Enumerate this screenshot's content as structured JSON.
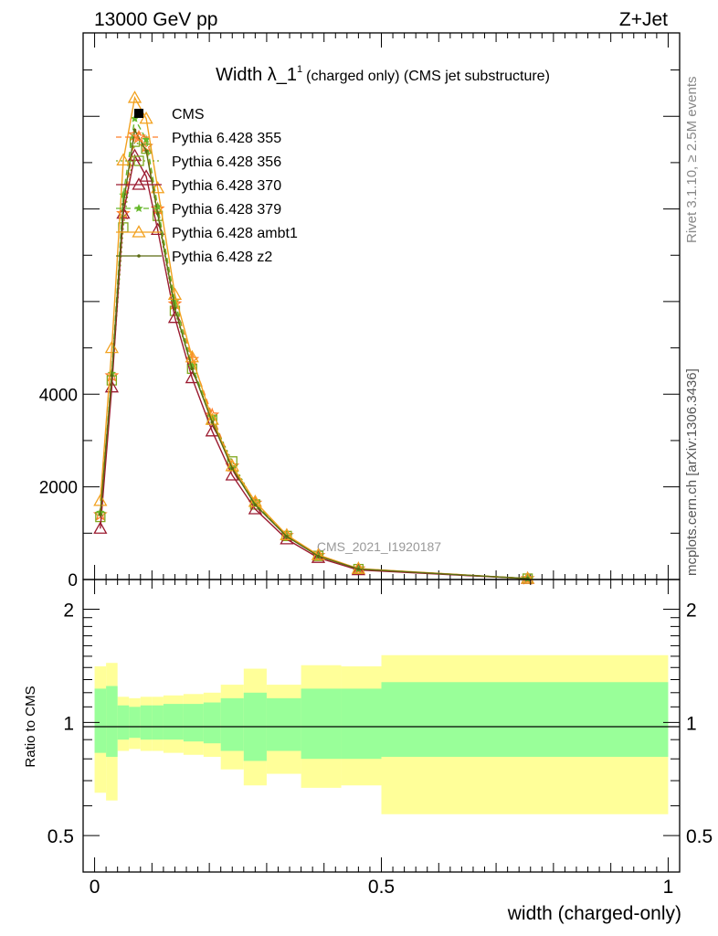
{
  "header": {
    "left": "13000 GeV pp",
    "right": "Z+Jet"
  },
  "side_labels": {
    "rivet": "Rivet 3.1.10, ≥ 2.5M events",
    "mcplots": "mcplots.cern.ch [arXiv:1306.3436]"
  },
  "chart_data": [
    {
      "type": "line",
      "title_main": "Width λ_1",
      "title_sup": "1",
      "title_rest": "(charged only) (CMS jet substructure)",
      "xlabel": "width (charged-only)",
      "watermark": "CMS_2021_I1920187",
      "xlim": [
        -0.02,
        1.02
      ],
      "ylim": [
        0,
        11800
      ],
      "y_ticks": [
        0,
        2000,
        4000
      ],
      "y_tick_labels": [
        "0",
        "2000",
        "4000"
      ],
      "legend_position": "top-left",
      "legend": [
        {
          "name": "CMS",
          "color": "#000000",
          "marker": "square",
          "dash": "none"
        },
        {
          "name": "Pythia 6.428 355",
          "color": "#ff7f2a",
          "marker": "star-open",
          "dash": "dashed"
        },
        {
          "name": "Pythia 6.428 356",
          "color": "#7fa81e",
          "marker": "square-open",
          "dash": "dotted"
        },
        {
          "name": "Pythia 6.428 370",
          "color": "#9b1b30",
          "marker": "triangle-open",
          "dash": "solid"
        },
        {
          "name": "Pythia 6.428 379",
          "color": "#66b82a",
          "marker": "star",
          "dash": "dashed"
        },
        {
          "name": "Pythia 6.428 ambt1",
          "color": "#f2a11f",
          "marker": "triangle-open",
          "dash": "solid"
        },
        {
          "name": "Pythia 6.428 z2",
          "color": "#5a6b12",
          "marker": "dot",
          "dash": "solid"
        }
      ],
      "x": [
        0.01,
        0.03,
        0.05,
        0.07,
        0.09,
        0.11,
        0.14,
        0.17,
        0.205,
        0.24,
        0.28,
        0.335,
        0.39,
        0.46,
        0.755
      ],
      "series": [
        {
          "name": "Pythia 6.428 355",
          "values": [
            1400,
            4400,
            7900,
            9600,
            9350,
            8000,
            5950,
            4750,
            3550,
            2450,
            1650,
            950,
            520,
            230,
            20
          ]
        },
        {
          "name": "Pythia 6.428 356",
          "values": [
            1350,
            4300,
            7600,
            9450,
            9300,
            7850,
            5800,
            4550,
            3450,
            2550,
            1620,
            940,
            510,
            225,
            20
          ]
        },
        {
          "name": "Pythia 6.428 370",
          "values": [
            1100,
            4150,
            7900,
            9150,
            8700,
            7550,
            5650,
            4350,
            3200,
            2250,
            1520,
            870,
            470,
            205,
            18
          ]
        },
        {
          "name": "Pythia 6.428 379",
          "values": [
            1450,
            4450,
            8300,
            9950,
            9500,
            8050,
            6000,
            4600,
            3500,
            2400,
            1640,
            940,
            515,
            228,
            20
          ]
        },
        {
          "name": "Pythia 6.428 ambt1",
          "values": [
            1700,
            5000,
            9050,
            10400,
            9950,
            8450,
            6150,
            4800,
            3450,
            2450,
            1680,
            960,
            530,
            235,
            20
          ]
        },
        {
          "name": "Pythia 6.428 z2",
          "values": [
            1400,
            4400,
            8100,
            9700,
            9250,
            7900,
            5850,
            4550,
            3400,
            2400,
            1610,
            930,
            505,
            225,
            20
          ]
        }
      ]
    },
    {
      "type": "area",
      "ylabel": "Ratio to CMS",
      "xlim": [
        -0.02,
        1.02
      ],
      "ylim": [
        0.4,
        2.4
      ],
      "log_y": true,
      "y_tick_labels": [
        "0.5",
        "1",
        "2"
      ],
      "y_ticks": [
        0.5,
        1,
        2
      ],
      "x_ticks": [
        0,
        0.5,
        1
      ],
      "x_tick_labels": [
        "0",
        "0.5",
        "1"
      ],
      "reference_line": 1,
      "bins": [
        {
          "lo": 0.0,
          "hi": 0.02,
          "inner": [
            0.83,
            1.23
          ],
          "outer": [
            0.65,
            1.41
          ]
        },
        {
          "lo": 0.02,
          "hi": 0.04,
          "inner": [
            0.81,
            1.25
          ],
          "outer": [
            0.62,
            1.44
          ]
        },
        {
          "lo": 0.04,
          "hi": 0.06,
          "inner": [
            0.9,
            1.11
          ],
          "outer": [
            0.84,
            1.17
          ]
        },
        {
          "lo": 0.06,
          "hi": 0.08,
          "inner": [
            0.91,
            1.1
          ],
          "outer": [
            0.85,
            1.16
          ]
        },
        {
          "lo": 0.08,
          "hi": 0.1,
          "inner": [
            0.9,
            1.11
          ],
          "outer": [
            0.84,
            1.17
          ]
        },
        {
          "lo": 0.1,
          "hi": 0.12,
          "inner": [
            0.9,
            1.11
          ],
          "outer": [
            0.84,
            1.17
          ]
        },
        {
          "lo": 0.12,
          "hi": 0.155,
          "inner": [
            0.9,
            1.12
          ],
          "outer": [
            0.83,
            1.18
          ]
        },
        {
          "lo": 0.155,
          "hi": 0.19,
          "inner": [
            0.89,
            1.12
          ],
          "outer": [
            0.82,
            1.19
          ]
        },
        {
          "lo": 0.19,
          "hi": 0.22,
          "inner": [
            0.88,
            1.13
          ],
          "outer": [
            0.81,
            1.2
          ]
        },
        {
          "lo": 0.22,
          "hi": 0.26,
          "inner": [
            0.84,
            1.16
          ],
          "outer": [
            0.75,
            1.26
          ]
        },
        {
          "lo": 0.26,
          "hi": 0.3,
          "inner": [
            0.79,
            1.2
          ],
          "outer": [
            0.68,
            1.39
          ]
        },
        {
          "lo": 0.3,
          "hi": 0.36,
          "inner": [
            0.84,
            1.16
          ],
          "outer": [
            0.73,
            1.26
          ]
        },
        {
          "lo": 0.36,
          "hi": 0.43,
          "inner": [
            0.8,
            1.23
          ],
          "outer": [
            0.67,
            1.42
          ]
        },
        {
          "lo": 0.43,
          "hi": 0.5,
          "inner": [
            0.8,
            1.23
          ],
          "outer": [
            0.68,
            1.41
          ]
        },
        {
          "lo": 0.5,
          "hi": 1.0,
          "inner": [
            0.81,
            1.28
          ],
          "outer": [
            0.57,
            1.51
          ]
        }
      ]
    }
  ]
}
